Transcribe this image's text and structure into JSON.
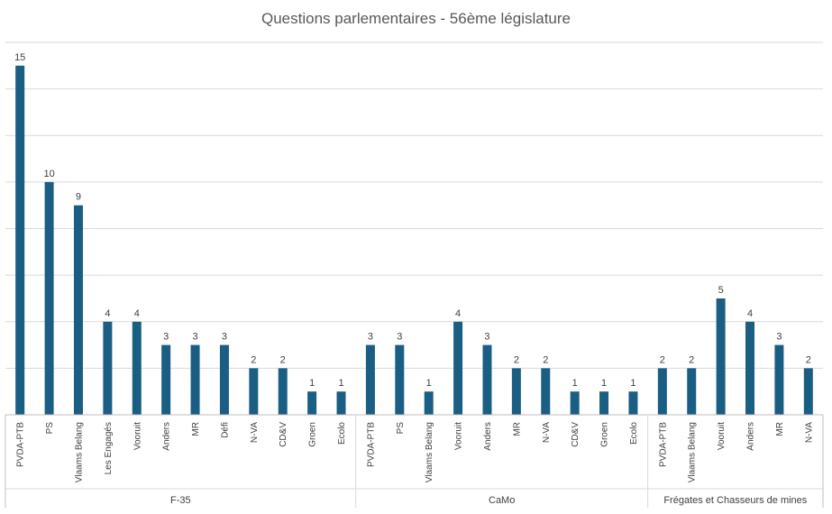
{
  "chart_data": {
    "type": "bar",
    "title": "Questions parlementaires - 56ème législature",
    "xlabel": "",
    "ylabel": "",
    "ylim": [
      0,
      16
    ],
    "grid": true,
    "legend": "none",
    "color": "#1b5e83",
    "groups": [
      {
        "name": "F-35",
        "categories": [
          "PVDA-PTB",
          "PS",
          "Vlaams Belang",
          "Les Engagés",
          "Vooruit",
          "Anders",
          "MR",
          "Défi",
          "N-VA",
          "CD&V",
          "Groen",
          "Ecolo"
        ],
        "values": [
          15,
          10,
          9,
          4,
          4,
          3,
          3,
          3,
          2,
          2,
          1,
          1
        ]
      },
      {
        "name": "CaMo",
        "categories": [
          "PVDA-PTB",
          "PS",
          "Vlaams Belang",
          "Vooruit",
          "Anders",
          "MR",
          "N-VA",
          "CD&V",
          "Groen",
          "Ecolo"
        ],
        "values": [
          3,
          3,
          1,
          4,
          3,
          2,
          2,
          1,
          1,
          1
        ]
      },
      {
        "name": "Frégates et Chasseurs de mines",
        "categories": [
          "PVDA-PTB",
          "Vlaams Belang",
          "Vooruit",
          "Anders",
          "MR",
          "N-VA"
        ],
        "values": [
          2,
          2,
          5,
          4,
          3,
          2
        ]
      }
    ]
  }
}
